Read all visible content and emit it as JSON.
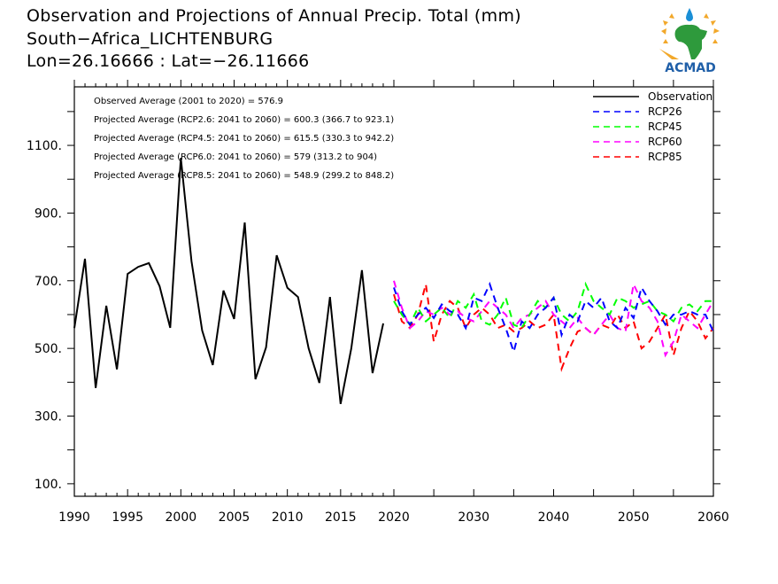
{
  "header": {
    "title": "Observation and Projections of Annual Precip. Total (mm)",
    "station": "South−Africa_LICHTENBURG",
    "coords": "Lon=26.16666 : Lat=−26.11666"
  },
  "logo": {
    "text": "ACMAD",
    "icon": "acmad-africa-logo-icon",
    "colors": {
      "africa": "#2e9a3c",
      "sun": "#f2a82a",
      "drop": "#1a8fd6",
      "text": "#1f5fa8"
    }
  },
  "stats": [
    "Observed Average (2001 to 2020) = 576.9",
    "Projected Average (RCP2.6: 2041 to 2060) = 600.3 (366.7 to 923.1)",
    "Projected Average (RCP4.5: 2041 to 2060) = 615.5 (330.3 to 942.2)",
    "Projected Average (RCP6.0: 2041 to 2060) = 579 (313.2 to 904)",
    "Projected Average (RCP8.5: 2041 to 2060) = 548.9 (299.2 to 848.2)"
  ],
  "chart_data": {
    "type": "line",
    "title": "Observation and Projections of Annual Precip. Total (mm)",
    "xlabel": "",
    "ylabel": "",
    "xlim": [
      1990,
      2060
    ],
    "ylim": [
      63,
      1273
    ],
    "x_break": 2020,
    "grid": false,
    "legend_position": "top-right",
    "yticks": [
      100,
      300,
      500,
      700,
      900,
      1100
    ],
    "ytick_labels": [
      "100.",
      "300.",
      "500.",
      "700.",
      "900.",
      "1100."
    ],
    "yminor": [
      200,
      400,
      600,
      800,
      1000,
      1200
    ],
    "xticks": [
      1990,
      1995,
      2000,
      2005,
      2010,
      2015,
      2020,
      2030,
      2040,
      2050,
      2060
    ],
    "xtick_labels": [
      "1990",
      "1995",
      "2000",
      "2005",
      "2010",
      "2015",
      "2020",
      "2030",
      "2040",
      "2050",
      "2060"
    ],
    "series": [
      {
        "name": "Observation",
        "color": "#000000",
        "style": "solid",
        "x_start": 1990,
        "values": [
          560,
          765,
          383,
          626,
          438,
          720,
          741,
          752,
          684,
          561,
          1063,
          757,
          553,
          451,
          671,
          587,
          872,
          409,
          503,
          775,
          679,
          652,
          500,
          398,
          652,
          336,
          500,
          731,
          427,
          574
        ]
      },
      {
        "name": "RCP26",
        "color": "#0000ff",
        "style": "dashed",
        "x_start": 2020,
        "values": [
          680,
          610,
          570,
          600,
          620,
          590,
          630,
          610,
          600,
          560,
          650,
          640,
          690,
          620,
          560,
          490,
          580,
          560,
          600,
          620,
          650,
          540,
          600,
          580,
          640,
          620,
          650,
          580,
          560,
          620,
          590,
          680,
          640,
          610,
          570,
          600,
          600,
          610,
          600,
          600,
          550
        ]
      },
      {
        "name": "RCP45",
        "color": "#00ff00",
        "style": "dashed",
        "x_start": 2020,
        "values": [
          640,
          600,
          570,
          620,
          580,
          600,
          620,
          590,
          640,
          620,
          660,
          580,
          570,
          600,
          650,
          570,
          560,
          600,
          640,
          620,
          650,
          600,
          580,
          610,
          690,
          640,
          620,
          600,
          650,
          640,
          620,
          630,
          640,
          610,
          600,
          580,
          620,
          630,
          610,
          640,
          640
        ]
      },
      {
        "name": "RCP60",
        "color": "#ff00ff",
        "style": "dashed",
        "x_start": 2020,
        "values": [
          700,
          620,
          560,
          580,
          610,
          600,
          620,
          600,
          610,
          590,
          580,
          610,
          640,
          620,
          600,
          560,
          590,
          600,
          620,
          640,
          600,
          580,
          560,
          590,
          560,
          540,
          570,
          600,
          560,
          550,
          690,
          640,
          620,
          580,
          480,
          520,
          600,
          580,
          560,
          600,
          640
        ]
      },
      {
        "name": "RCP85",
        "color": "#ff0000",
        "style": "dashed",
        "x_start": 2020,
        "values": [
          660,
          580,
          560,
          600,
          690,
          520,
          600,
          640,
          620,
          560,
          600,
          620,
          600,
          560,
          570,
          550,
          560,
          580,
          560,
          570,
          600,
          440,
          500,
          550,
          560,
          540,
          570,
          560,
          600,
          560,
          580,
          500,
          520,
          560,
          600,
          480,
          560,
          610,
          580,
          530,
          560
        ]
      }
    ]
  }
}
